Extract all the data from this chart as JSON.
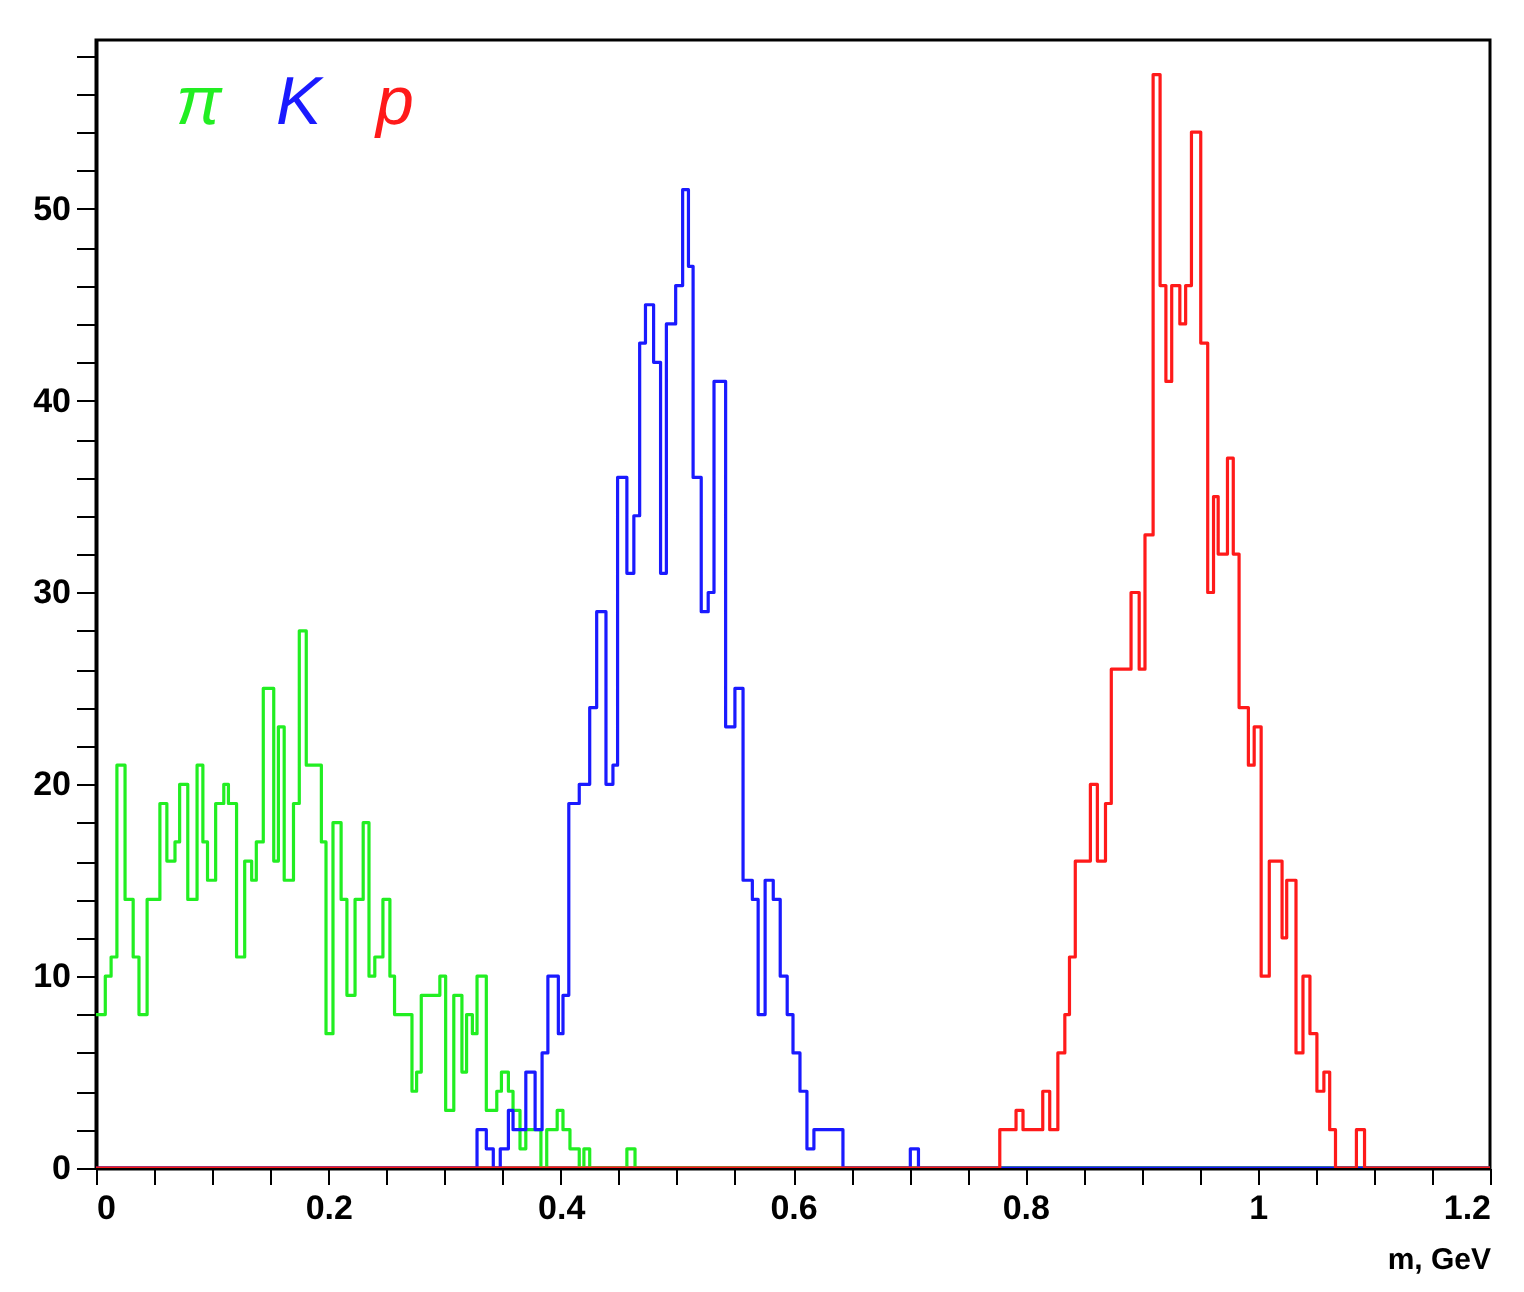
{
  "chart_data": {
    "type": "step",
    "xlabel": "m, GeV",
    "legend": "top left",
    "grid": false,
    "xlim": [
      0,
      1.2
    ],
    "ylim": [
      0,
      58.8
    ],
    "xticks": [
      0,
      {
        "value": 0.05,
        "label": null
      },
      {
        "value": 0.1,
        "label": null
      },
      {
        "value": 0.15,
        "label": null
      },
      0.2,
      {
        "value": 0.25,
        "label": null
      },
      {
        "value": 0.3,
        "label": null
      },
      {
        "value": 0.35,
        "label": null
      },
      0.4,
      {
        "value": 0.45,
        "label": null
      },
      {
        "value": 0.5,
        "label": null
      },
      {
        "value": 0.55,
        "label": null
      },
      0.6,
      {
        "value": 0.65,
        "label": null
      },
      {
        "value": 0.7,
        "label": null
      },
      {
        "value": 0.75,
        "label": null
      },
      0.8,
      {
        "value": 0.85,
        "label": null
      },
      {
        "value": 0.9,
        "label": null
      },
      {
        "value": 0.95,
        "label": null
      },
      1,
      {
        "value": 1.05,
        "label": null
      },
      {
        "value": 1.1,
        "label": null
      },
      {
        "value": 1.15,
        "label": null
      },
      1.2
    ],
    "yticks": [
      0,
      {
        "value": 2,
        "label": null
      },
      {
        "value": 4,
        "label": null
      },
      {
        "value": 6,
        "label": null
      },
      {
        "value": 8,
        "label": null
      },
      10,
      {
        "value": 12,
        "label": null
      },
      {
        "value": 14,
        "label": null
      },
      {
        "value": 16,
        "label": null
      },
      {
        "value": 18,
        "label": null
      },
      20,
      {
        "value": 22,
        "label": null
      },
      {
        "value": 24,
        "label": null
      },
      {
        "value": 26,
        "label": null
      },
      {
        "value": 28,
        "label": null
      },
      30,
      {
        "value": 32,
        "label": null
      },
      {
        "value": 34,
        "label": null
      },
      {
        "value": 36,
        "label": null
      },
      {
        "value": 38,
        "label": null
      },
      40,
      {
        "value": 42,
        "label": null
      },
      {
        "value": 44,
        "label": null
      },
      {
        "value": 46,
        "label": null
      },
      {
        "value": 48,
        "label": null
      },
      50,
      {
        "value": 52,
        "label": null
      },
      {
        "value": 54,
        "label": null
      },
      {
        "value": 56,
        "label": null
      },
      {
        "value": 58,
        "label": null
      }
    ],
    "series": [
      {
        "name": "π",
        "color": "#22ee22",
        "x": [
          0,
          0.008,
          0.013,
          0.018,
          0.025,
          0.032,
          0.037,
          0.044,
          0.055,
          0.061,
          0.068,
          0.072,
          0.079,
          0.087,
          0.092,
          0.096,
          0.103,
          0.11,
          0.114,
          0.121,
          0.128,
          0.134,
          0.138,
          0.144,
          0.153,
          0.157,
          0.162,
          0.17,
          0.175,
          0.181,
          0.194,
          0.198,
          0.204,
          0.211,
          0.216,
          0.223,
          0.23,
          0.235,
          0.24,
          0.247,
          0.253,
          0.257,
          0.272,
          0.276,
          0.28,
          0.296,
          0.301,
          0.308,
          0.315,
          0.319,
          0.324,
          0.328,
          0.336,
          0.345,
          0.349,
          0.355,
          0.359,
          0.365,
          0.37,
          0.383,
          0.388,
          0.397,
          0.402,
          0.408,
          0.416,
          0.42,
          0.425,
          0.457,
          0.464,
          1.2
        ],
        "values": [
          8,
          10,
          11,
          21,
          14,
          11,
          8,
          14,
          19,
          16,
          17,
          20,
          14,
          21,
          17,
          15,
          19,
          20,
          19,
          11,
          16,
          15,
          17,
          25,
          16,
          23,
          15,
          19,
          28,
          21,
          17,
          7,
          18,
          14,
          9,
          14,
          18,
          10,
          11,
          14,
          10,
          8,
          4,
          5,
          9,
          10,
          3,
          9,
          5,
          8,
          7,
          10,
          3,
          4,
          5,
          4,
          3,
          1,
          2,
          0,
          2,
          3,
          2,
          1,
          0,
          1,
          0,
          1,
          0,
          0
        ]
      },
      {
        "name": "K",
        "color": "#1a1aff",
        "x": [
          0,
          0.328,
          0.336,
          0.342,
          0.348,
          0.355,
          0.359,
          0.37,
          0.378,
          0.384,
          0.389,
          0.398,
          0.402,
          0.407,
          0.416,
          0.425,
          0.431,
          0.439,
          0.445,
          0.449,
          0.457,
          0.463,
          0.468,
          0.473,
          0.48,
          0.486,
          0.491,
          0.499,
          0.505,
          0.51,
          0.514,
          0.521,
          0.527,
          0.532,
          0.542,
          0.55,
          0.557,
          0.565,
          0.57,
          0.576,
          0.583,
          0.589,
          0.595,
          0.6,
          0.606,
          0.612,
          0.618,
          0.643,
          0.701,
          0.708,
          1.2
        ],
        "values": [
          0,
          2,
          1,
          0,
          1,
          3,
          2,
          5,
          2,
          6,
          10,
          7,
          9,
          19,
          20,
          24,
          29,
          20,
          21,
          36,
          31,
          34,
          43,
          45,
          42,
          31,
          44,
          46,
          51,
          47,
          36,
          29,
          30,
          41,
          23,
          25,
          15,
          14,
          8,
          15,
          14,
          10,
          8,
          6,
          4,
          1,
          2,
          0,
          1,
          0,
          0
        ]
      },
      {
        "name": "p",
        "color": "#ff1a1a",
        "x": [
          0,
          0.778,
          0.792,
          0.798,
          0.815,
          0.821,
          0.828,
          0.834,
          0.838,
          0.843,
          0.856,
          0.862,
          0.869,
          0.874,
          0.891,
          0.898,
          0.903,
          0.91,
          0.916,
          0.921,
          0.926,
          0.933,
          0.938,
          0.943,
          0.951,
          0.957,
          0.962,
          0.966,
          0.974,
          0.979,
          0.984,
          0.992,
          0.997,
          1.003,
          1.01,
          1.021,
          1.025,
          1.033,
          1.039,
          1.045,
          1.051,
          1.057,
          1.062,
          1.067,
          1.085,
          1.092,
          1.2
        ],
        "values": [
          0,
          2,
          3,
          2,
          4,
          2,
          6,
          8,
          11,
          16,
          20,
          16,
          19,
          26,
          30,
          26,
          33,
          57,
          46,
          41,
          46,
          44,
          46,
          54,
          43,
          30,
          35,
          32,
          37,
          32,
          24,
          21,
          23,
          10,
          16,
          12,
          15,
          6,
          10,
          7,
          4,
          5,
          2,
          0,
          2,
          0,
          0
        ]
      }
    ]
  }
}
